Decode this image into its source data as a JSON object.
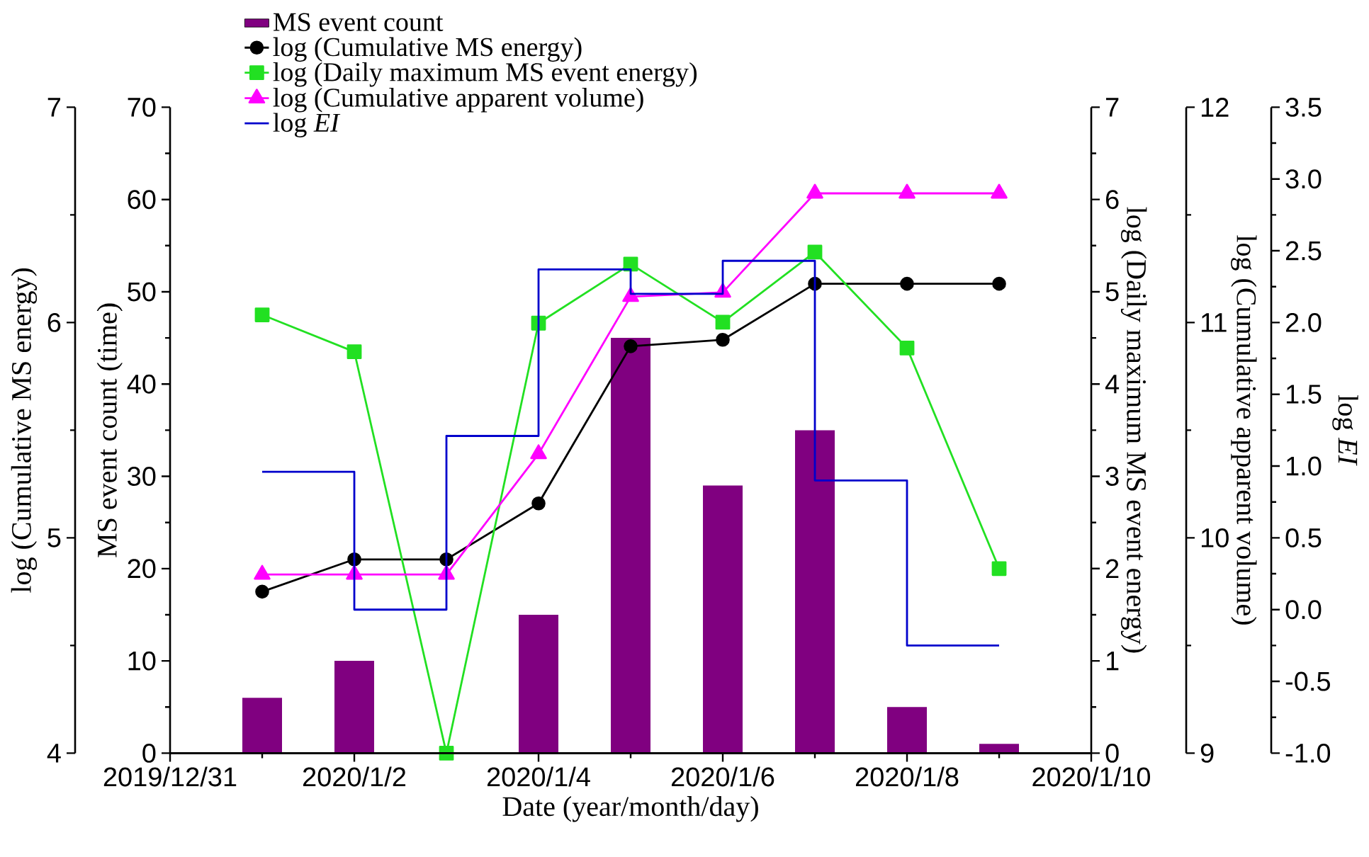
{
  "chart_data": [
    {
      "type": "bar",
      "xlabel": "Date (year/month/day)",
      "ylabel": "MS event count (time)",
      "y2label": "log (Cumulative MS energy)",
      "y3label": "log (Daily maximum MS event energy)",
      "x": [
        "2020-01-01",
        "2020-01-02",
        "2020-01-03",
        "2020-01-04",
        "2020-01-05",
        "2020-01-06",
        "2020-01-07",
        "2020-01-08",
        "2020-01-09"
      ],
      "xlim": [
        "2019-12-31",
        "2020-01-10"
      ],
      "xticks": [
        {
          "value": "2019-12-31",
          "label": "2019/12/31"
        },
        {
          "value": "2020-01-02",
          "label": "2020/1/2"
        },
        {
          "value": "2020-01-04",
          "label": "2020/1/4"
        },
        {
          "value": "2020-01-06",
          "label": "2020/1/6"
        },
        {
          "value": "2020-01-08",
          "label": "2020/1/8"
        },
        {
          "value": "2020-01-10",
          "label": "2020/1/10"
        }
      ],
      "ylim": [
        0,
        70
      ],
      "yticks": [
        0,
        10,
        20,
        30,
        40,
        50,
        60,
        70
      ],
      "y2lim": [
        4,
        7
      ],
      "y2ticks": [
        4,
        5,
        6,
        7
      ],
      "y3lim": [
        0,
        7
      ],
      "y3ticks": [
        0,
        1,
        2,
        3,
        4,
        5,
        6,
        7
      ],
      "legend": "top left",
      "grid": false,
      "series": [
        {
          "name": "MS event count",
          "color": "#800080",
          "values": [
            6,
            10,
            0,
            15,
            45,
            29,
            35,
            5,
            1
          ]
        },
        {
          "name": "log (Cumulative MS energy)",
          "type": "line",
          "axis": "y2",
          "marker": "circle",
          "color": "#000000",
          "values": [
            4.75,
            4.9,
            4.9,
            5.16,
            5.89,
            5.92,
            6.18,
            6.18,
            6.18
          ]
        },
        {
          "name": "log (Daily maximum MS event energy)",
          "type": "line",
          "axis": "y3",
          "marker": "square",
          "color": "#22e022",
          "values": [
            4.75,
            4.35,
            0,
            4.66,
            5.3,
            4.67,
            5.43,
            4.39,
            2.0
          ]
        }
      ]
    },
    {
      "type": "line",
      "ylabel": "log (Cumulative apparent volume)",
      "y2label": "log *EI*",
      "tick_labels": "y",
      "x": [
        "2020-01-01",
        "2020-01-02",
        "2020-01-03",
        "2020-01-04",
        "2020-01-05",
        "2020-01-06",
        "2020-01-07",
        "2020-01-08",
        "2020-01-09"
      ],
      "xlim": [
        "2019-12-31",
        "2020-01-10"
      ],
      "ylim": [
        9,
        12
      ],
      "yticks": [
        9,
        10,
        11,
        12
      ],
      "y2lim": [
        -1,
        3.5
      ],
      "y2ticks": [
        {
          "value": -1,
          "label": "-1.0"
        },
        {
          "value": -0.5,
          "label": "-0.5"
        },
        {
          "value": 0,
          "label": "0.0"
        },
        {
          "value": 0.5,
          "label": "0.5"
        },
        {
          "value": 1,
          "label": "1.0"
        },
        {
          "value": 1.5,
          "label": "1.5"
        },
        {
          "value": 2,
          "label": "2.0"
        },
        {
          "value": 2.5,
          "label": "2.5"
        },
        {
          "value": 3,
          "label": "3.0"
        },
        {
          "value": 3.5,
          "label": "3.5"
        }
      ],
      "legend": "top left",
      "series": [
        {
          "name": "log (Cumulative apparent volume)",
          "marker": "triangle",
          "color": "#ff00ff",
          "values": [
            9.83,
            9.83,
            9.83,
            10.39,
            11.12,
            11.14,
            11.6,
            11.6,
            11.6
          ]
        },
        {
          "name": "log *EI*",
          "type": "step",
          "axis": "y2",
          "marker": "none",
          "color": "#0000cc",
          "values": [
            0.96,
            0.0,
            1.21,
            2.37,
            2.2,
            2.43,
            0.9,
            -0.25,
            -0.25
          ]
        }
      ]
    }
  ]
}
